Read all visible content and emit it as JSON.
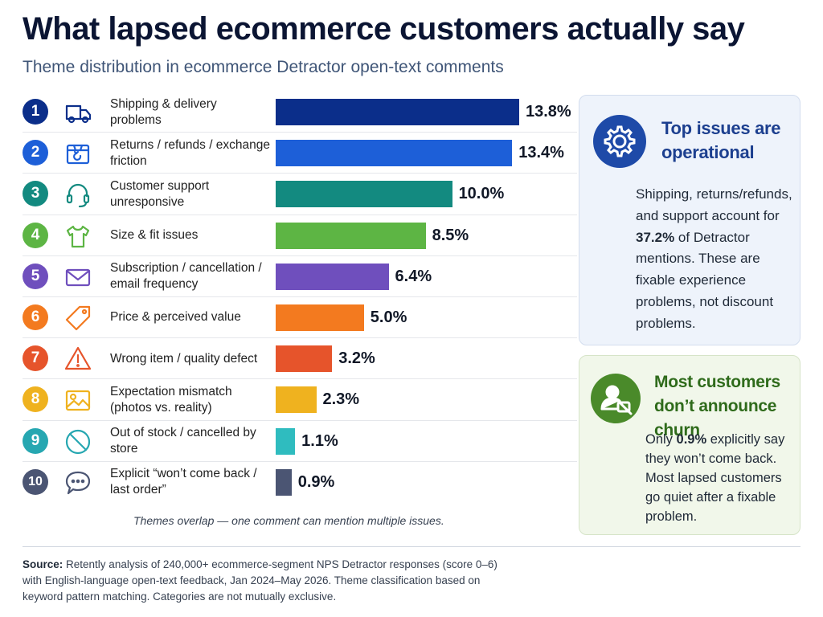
{
  "title": "What lapsed ecommerce customers actually say",
  "subtitle": "Theme distribution in ecommerce Detractor open-text comments",
  "chart_data": {
    "type": "bar",
    "orientation": "horizontal",
    "title": "What lapsed ecommerce customers actually say",
    "subtitle": "Theme distribution in ecommerce Detractor open-text comments",
    "xmax": 13.8,
    "categories": [
      "Shipping & delivery problems",
      "Returns / refunds / exchange friction",
      "Customer support unresponsive",
      "Size & fit issues",
      "Subscription / cancellation / email frequency",
      "Price & perceived value",
      "Wrong item / quality defect",
      "Expectation mismatch (photos vs. reality)",
      "Out of stock / cancelled by store",
      "Explicit “won’t come back / last order”"
    ],
    "values": [
      13.8,
      13.4,
      10.0,
      8.5,
      6.4,
      5.0,
      3.2,
      2.3,
      1.1,
      0.9
    ]
  },
  "rows": [
    {
      "rank": "1",
      "label": "Shipping & delivery problems",
      "value": 13.8,
      "value_label": "13.8%",
      "color": "#0b2e8a",
      "badge_color": "#0b2e8a",
      "icon": "truck-icon"
    },
    {
      "rank": "2",
      "label": "Returns / refunds / exchange friction",
      "value": 13.4,
      "value_label": "13.4%",
      "color": "#1d5fd8",
      "badge_color": "#1d5fd8",
      "icon": "return-box-icon"
    },
    {
      "rank": "3",
      "label": "Customer support unresponsive",
      "value": 10.0,
      "value_label": "10.0%",
      "color": "#138a80",
      "badge_color": "#138a80",
      "icon": "headset-icon"
    },
    {
      "rank": "4",
      "label": "Size & fit issues",
      "value": 8.5,
      "value_label": "8.5%",
      "color": "#5db544",
      "badge_color": "#5db544",
      "icon": "tshirt-icon"
    },
    {
      "rank": "5",
      "label": "Subscription / cancellation / email frequency",
      "value": 6.4,
      "value_label": "6.4%",
      "color": "#6f4fbd",
      "badge_color": "#6f4fbd",
      "icon": "envelope-icon"
    },
    {
      "rank": "6",
      "label": "Price & perceived value",
      "value": 5.0,
      "value_label": "5.0%",
      "color": "#f37a1f",
      "badge_color": "#f37a1f",
      "icon": "price-tag-icon"
    },
    {
      "rank": "7",
      "label": "Wrong item / quality defect",
      "value": 3.2,
      "value_label": "3.2%",
      "color": "#e6542b",
      "badge_color": "#e6542b",
      "icon": "warning-icon"
    },
    {
      "rank": "8",
      "label": "Expectation mismatch (photos vs. reality)",
      "value": 2.3,
      "value_label": "2.3%",
      "color": "#efb21f",
      "badge_color": "#efb21f",
      "icon": "image-icon"
    },
    {
      "rank": "9",
      "label": "Out of stock / cancelled by store",
      "value": 1.1,
      "value_label": "1.1%",
      "color": "#2fbcbf",
      "badge_color": "#26a7b1",
      "icon": "prohibited-icon"
    },
    {
      "rank": "10",
      "label": "Explicit “won’t come back / last order”",
      "value": 0.9,
      "value_label": "0.9%",
      "color": "#4b5573",
      "badge_color": "#4b5573",
      "icon": "chat-bubble-icon"
    }
  ],
  "note": "Themes overlap — one comment can mention multiple issues.",
  "card1": {
    "heading": "Top issues are operational",
    "body_before": "Shipping, returns/refunds, and support account for ",
    "body_bold": "37.2%",
    "body_after": " of Detractor mentions. These are fixable experience problems, not discount problems.",
    "icon": "gear-icon",
    "accent": "#1e4aa8"
  },
  "card2": {
    "heading": "Most customers don’t announce churn",
    "body_before": "Only ",
    "body_bold": "0.9%",
    "body_after": " explicitly say they won’t come back. Most lapsed customers go quiet after a fixable problem.",
    "icon": "silent-user-icon",
    "accent": "#4a8a2a"
  },
  "source": {
    "label": "Source:",
    "text": "Retently analysis of 240,000+ ecommerce-segment NPS Detractor responses (score 0–6) with English-language open-text feedback, Jan 2024–May 2026. Theme classification based on keyword pattern matching. Categories are not mutually exclusive."
  }
}
